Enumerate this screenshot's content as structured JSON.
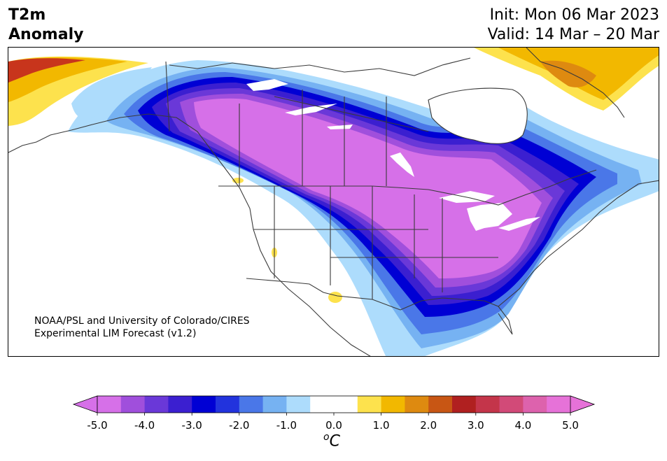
{
  "header": {
    "title_line1": "T2m",
    "title_line2": "Anomaly",
    "init": "Init: Mon 06 Mar 2023",
    "valid": "Valid: 14 Mar – 20 Mar"
  },
  "credit": {
    "line1": "NOAA/PSL and University of Colorado/CIRES",
    "line2": "Experimental LIM Forecast (v1.2)"
  },
  "colorbar": {
    "unit_base": "C",
    "unit_sup": "o",
    "ticks": [
      "-5.0",
      "-4.0",
      "-3.0",
      "-2.0",
      "-1.0",
      "0.0",
      "1.0",
      "2.0",
      "3.0",
      "4.0",
      "5.0"
    ],
    "colors": [
      "#d670e8",
      "#a04fdc",
      "#6a38d8",
      "#3b1fd0",
      "#0000d4",
      "#2233dd",
      "#4a77e8",
      "#76b2f2",
      "#addcfc",
      "#ffffff",
      "#ffffff",
      "#fde24d",
      "#f2b800",
      "#de8a10",
      "#c85614",
      "#b02020",
      "#c4354a",
      "#d24a78",
      "#dd62ad",
      "#e672d8"
    ],
    "under_color": "#d670e8",
    "over_color": "#e672d8"
  },
  "map": {
    "colors": {
      "deep_cold": "#d670e8",
      "cold4": "#a04fdc",
      "cold3": "#6a38d8",
      "cold2": "#3b1fd0",
      "blue": "#0000d4",
      "mid_blue": "#4a77e8",
      "light_blue": "#76b2f2",
      "pale_blue": "#addcfc",
      "warm_yellow": "#fde24d",
      "warm_orange": "#f2b800",
      "warm_dark": "#de8a10",
      "warm_red": "#c8351c",
      "coast": "#3a3a3a"
    }
  }
}
